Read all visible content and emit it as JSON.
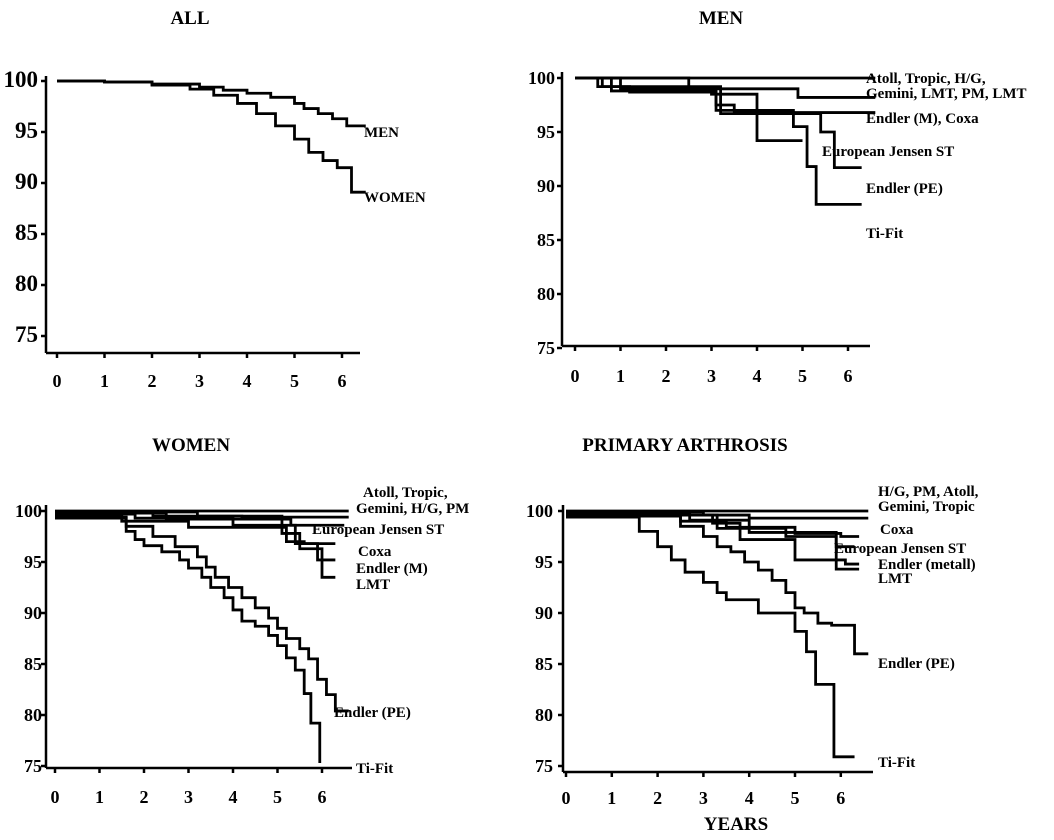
{
  "figure": {
    "xlabel": "YEARS"
  },
  "chart_data": [
    {
      "type": "line",
      "title": "ALL",
      "xlim": [
        0,
        6.6
      ],
      "ylim": [
        75,
        100
      ],
      "x_ticks": [
        0,
        1,
        2,
        3,
        4,
        5,
        6
      ],
      "y_ticks": [
        100,
        95,
        90,
        85,
        80,
        75
      ],
      "series": [
        {
          "name": "MEN",
          "x": [
            0,
            1,
            2,
            3,
            3.5,
            4,
            4.5,
            5,
            5.2,
            5.5,
            5.8,
            6.1,
            6.5
          ],
          "y": [
            100,
            99.9,
            99.7,
            99.4,
            99.1,
            98.8,
            98.4,
            97.8,
            97.3,
            96.8,
            96.3,
            95.6,
            95.6
          ]
        },
        {
          "name": "WOMEN",
          "x": [
            0,
            1,
            2,
            2.8,
            3.3,
            3.8,
            4.2,
            4.6,
            5.0,
            5.3,
            5.6,
            5.9,
            6.05,
            6.2,
            6.5
          ],
          "y": [
            100,
            99.9,
            99.6,
            99.2,
            98.6,
            97.8,
            96.8,
            95.6,
            94.3,
            93.0,
            92.2,
            91.5,
            91.5,
            89.1,
            89.1
          ]
        }
      ]
    },
    {
      "type": "line",
      "title": "MEN",
      "xlim": [
        0,
        6.6
      ],
      "ylim": [
        75,
        100
      ],
      "x_ticks": [
        0,
        1,
        2,
        3,
        4,
        5,
        6
      ],
      "y_ticks": [
        100,
        95,
        90,
        85,
        80,
        75
      ],
      "series": [
        {
          "name": "Atoll, Tropic, H/G,",
          "x": [
            0,
            6.6
          ],
          "y": [
            100,
            100
          ]
        },
        {
          "name": "Gemini, LMT, PM, LMT",
          "x": [
            0,
            2.5,
            2.5,
            4.9,
            4.9,
            6.6
          ],
          "y": [
            100,
            100,
            99,
            99,
            98.2,
            98.2
          ]
        },
        {
          "name": "Endler (M), Coxa",
          "x": [
            0,
            0.6,
            0.6,
            1.2,
            1.2,
            3.1,
            3.1,
            3.5,
            3.5,
            6.6
          ],
          "y": [
            100,
            100,
            99.2,
            99.2,
            98.7,
            98.7,
            97.5,
            97.5,
            96.8,
            96.8
          ]
        },
        {
          "name": "European Jensen ST",
          "x": [
            0,
            1.0,
            1.0,
            3.0,
            3.0,
            4.0,
            4.0,
            5.0
          ],
          "y": [
            100,
            100,
            99,
            99,
            98.5,
            98.5,
            94.2,
            94.2
          ]
        },
        {
          "name": "Endler (PE)",
          "x": [
            0,
            0.5,
            0.5,
            3.2,
            3.2,
            5.4,
            5.4,
            5.7,
            5.7,
            6.3
          ],
          "y": [
            100,
            100,
            99.2,
            99.2,
            96.7,
            96.7,
            95,
            95,
            91.7,
            91.7
          ]
        },
        {
          "name": "Ti-Fit",
          "x": [
            0,
            0.8,
            0.8,
            3.1,
            3.1,
            4.8,
            4.8,
            5.1,
            5.1,
            5.3,
            5.3,
            6.3
          ],
          "y": [
            100,
            100,
            98.8,
            98.8,
            97,
            97,
            95.5,
            95.5,
            91.8,
            91.8,
            88.3,
            88.3
          ]
        }
      ]
    },
    {
      "type": "line",
      "title": "WOMEN",
      "xlim": [
        0,
        6.6
      ],
      "ylim": [
        75,
        100
      ],
      "x_ticks": [
        0,
        1,
        2,
        3,
        4,
        5,
        6
      ],
      "y_ticks": [
        100,
        95,
        90,
        85,
        80,
        75
      ],
      "series": [
        {
          "name": "Atoll, Tropic,",
          "x": [
            0,
            6.6
          ],
          "y": [
            100,
            100
          ]
        },
        {
          "name": "Gemini, H/G, PM",
          "x": [
            0,
            2.2,
            2.2,
            4.2,
            4.2,
            6.6
          ],
          "y": [
            99.9,
            99.9,
            99.5,
            99.5,
            99.4,
            99.4
          ]
        },
        {
          "name": "European Jensen ST",
          "x": [
            0,
            2.5,
            2.5,
            5.3,
            5.3,
            6.5
          ],
          "y": [
            99.8,
            99.8,
            99.2,
            99.2,
            98.6,
            98.6
          ]
        },
        {
          "name": "Coxa",
          "x": [
            0,
            1.5,
            1.5,
            3.0,
            3.0,
            5.2,
            5.2,
            5.6,
            5.6,
            6.3
          ],
          "y": [
            99.6,
            99.6,
            99.0,
            99.0,
            98.4,
            98.4,
            97.0,
            97.0,
            96.8,
            96.8
          ]
        },
        {
          "name": "Endler (M)",
          "x": [
            0,
            1.8,
            1.8,
            4.0,
            4.0,
            5.4,
            5.4,
            5.9,
            5.9,
            6.3
          ],
          "y": [
            99.7,
            99.7,
            99.3,
            99.3,
            98.6,
            98.6,
            96.8,
            96.8,
            95.2,
            95.2
          ]
        },
        {
          "name": "LMT",
          "x": [
            0,
            3.2,
            3.2,
            5.1,
            5.1,
            5.5,
            5.5,
            6.0,
            6.0,
            6.3
          ],
          "y": [
            99.9,
            99.9,
            99.5,
            99.5,
            97.8,
            97.8,
            96.3,
            96.3,
            93.5,
            93.5
          ]
        },
        {
          "name": "Endler (PE)",
          "x": [
            0,
            1.5,
            1.6,
            2.2,
            2.7,
            3.2,
            3.4,
            3.6,
            3.9,
            4.2,
            4.5,
            4.8,
            5.0,
            5.2,
            5.5,
            5.7,
            5.9,
            6.1,
            6.3,
            6.6
          ],
          "y": [
            99.3,
            99.3,
            98.5,
            97.5,
            96.5,
            95.5,
            94.5,
            93.5,
            92.5,
            91.5,
            90.5,
            89.5,
            88.5,
            87.5,
            86.5,
            85.5,
            83.5,
            82.0,
            80.4,
            80.4
          ]
        },
        {
          "name": "Ti-Fit",
          "x": [
            0,
            1.5,
            1.6,
            1.8,
            2.0,
            2.4,
            2.8,
            3.0,
            3.3,
            3.5,
            3.8,
            4.0,
            4.2,
            4.5,
            4.8,
            5.0,
            5.2,
            5.4,
            5.6,
            5.75,
            5.95,
            5.95
          ],
          "y": [
            99.4,
            99.4,
            98,
            97.2,
            96.6,
            96,
            95.2,
            94.4,
            93.5,
            92.5,
            91.5,
            90.3,
            89.2,
            88.7,
            87.8,
            86.8,
            85.6,
            84.4,
            82.1,
            79.2,
            79.2,
            75.3
          ]
        }
      ]
    },
    {
      "type": "line",
      "title": "PRIMARY ARTHROSIS",
      "xlim": [
        0,
        6.6
      ],
      "ylim": [
        75,
        100
      ],
      "x_ticks": [
        0,
        1,
        2,
        3,
        4,
        5,
        6
      ],
      "y_ticks": [
        100,
        95,
        90,
        85,
        80,
        75
      ],
      "series": [
        {
          "name": "H/G, PM, Atoll,",
          "x": [
            0,
            6.6
          ],
          "y": [
            100,
            100
          ]
        },
        {
          "name": "Gemini, Tropic",
          "x": [
            0,
            3.0,
            3.0,
            4.0,
            4.0,
            6.6
          ],
          "y": [
            99.9,
            99.9,
            99.6,
            99.6,
            99.3,
            99.3
          ]
        },
        {
          "name": "Coxa",
          "x": [
            0,
            2.5,
            2.5,
            3.5,
            3.5,
            5.0,
            5.0,
            6.0,
            6.0,
            6.4
          ],
          "y": [
            99.8,
            99.8,
            99.0,
            99.0,
            98.4,
            98.4,
            97.8,
            97.8,
            97.5,
            97.5
          ]
        },
        {
          "name": "European Jensen ST",
          "x": [
            0,
            2.7,
            2.7,
            4.0,
            4.0,
            5.9,
            5.9,
            6.3
          ],
          "y": [
            99.8,
            99.8,
            99.1,
            99.1,
            97.9,
            97.9,
            96.5,
            96.5
          ]
        },
        {
          "name": "Endler (metall)",
          "x": [
            0,
            3.2,
            3.2,
            3.8,
            3.8,
            5.0,
            5.0,
            6.1,
            6.1,
            6.4
          ],
          "y": [
            99.6,
            99.6,
            98.8,
            98.8,
            97.2,
            97.2,
            95.2,
            95.2,
            94.8,
            94.8
          ]
        },
        {
          "name": "LMT",
          "x": [
            0,
            3.3,
            3.3,
            4.8,
            4.8,
            5.9,
            5.9,
            6.4
          ],
          "y": [
            99.6,
            99.6,
            98.3,
            98.3,
            97.5,
            97.5,
            94.3,
            94.3
          ]
        },
        {
          "name": "Endler (PE)",
          "x": [
            0,
            2.2,
            2.5,
            3.0,
            3.3,
            3.6,
            3.9,
            4.2,
            4.5,
            4.8,
            5.0,
            5.2,
            5.5,
            5.8,
            6.3,
            6.6
          ],
          "y": [
            99.5,
            99.5,
            98.5,
            97.5,
            96.5,
            96.0,
            95.0,
            94.2,
            93.2,
            92.0,
            90.5,
            90.0,
            89.0,
            88.8,
            86.0,
            86.0
          ]
        },
        {
          "name": "Ti-Fit",
          "x": [
            0,
            1.3,
            1.6,
            2.0,
            2.3,
            2.6,
            3.0,
            3.3,
            3.5,
            3.8,
            4.2,
            4.8,
            5.0,
            5.25,
            5.45,
            5.85,
            5.85,
            6.3
          ],
          "y": [
            99.4,
            99.4,
            98,
            96.5,
            95.2,
            94,
            93,
            92,
            91.3,
            91.3,
            90,
            90,
            88.2,
            86.2,
            83.0,
            83.0,
            75.9,
            75.9
          ]
        }
      ]
    }
  ]
}
